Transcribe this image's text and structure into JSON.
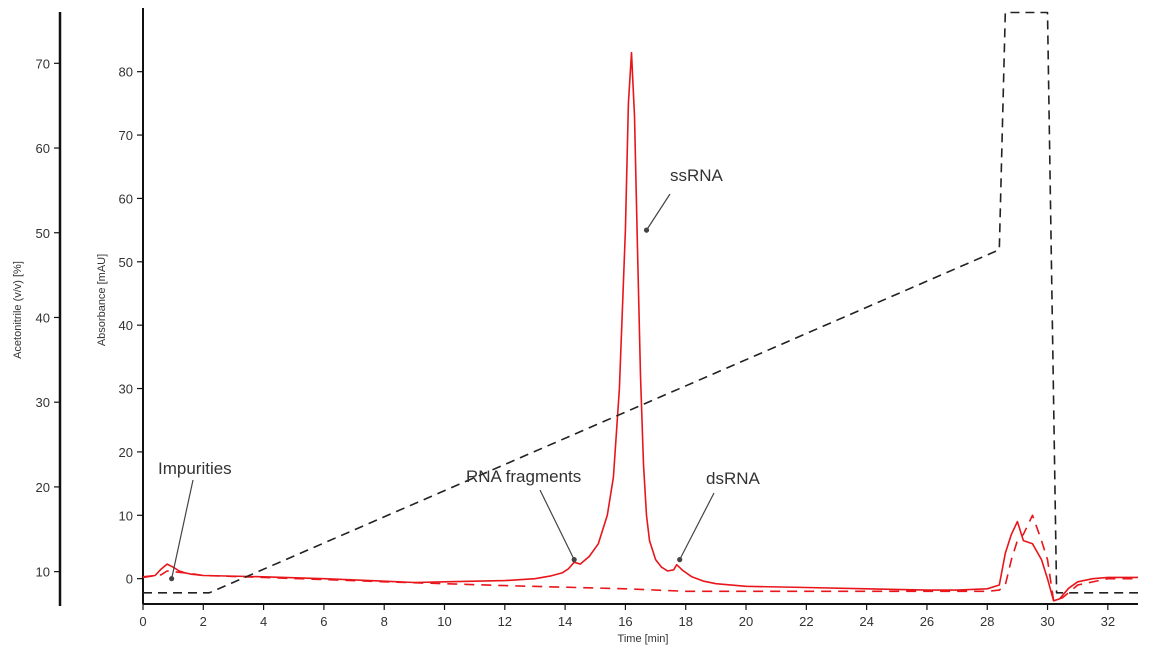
{
  "chart_data": {
    "type": "line",
    "xlabel": "Time [min]",
    "ylabel": "Absorbance [mAU]",
    "y2label": "Acetonitrile (v/v) [%]",
    "xlim": [
      0,
      33
    ],
    "ylim": [
      -4,
      85
    ],
    "y2lim": [
      5,
      77
    ],
    "x_ticks": [
      "0",
      "2",
      "4",
      "6",
      "8",
      "10",
      "12",
      "14",
      "16",
      "18",
      "20",
      "22",
      "24",
      "26",
      "28",
      "30",
      "32"
    ],
    "y_ticks": [
      "0",
      "10",
      "20",
      "30",
      "40",
      "50",
      "60",
      "70",
      "80"
    ],
    "y2_ticks": [
      "10",
      "20",
      "30",
      "40",
      "50",
      "60",
      "70"
    ],
    "grid": false,
    "colors": {
      "absorbance": "#e8161b",
      "blank": "#e8161b",
      "acetonitrile": "#222222"
    },
    "series": [
      {
        "axis": "left",
        "style": "solid",
        "x": [
          0,
          0.4,
          0.6,
          0.8,
          1.0,
          1.2,
          1.4,
          1.6,
          2,
          4,
          6,
          8,
          9,
          10,
          11,
          12,
          13,
          13.5,
          13.9,
          14.1,
          14.3,
          14.5,
          14.8,
          15.1,
          15.4,
          15.6,
          15.8,
          16.0,
          16.1,
          16.2,
          16.3,
          16.4,
          16.5,
          16.6,
          16.7,
          16.8,
          17.0,
          17.2,
          17.4,
          17.6,
          17.7,
          17.9,
          18.2,
          18.6,
          19,
          20,
          22,
          24,
          26,
          27,
          28,
          28.4,
          28.6,
          28.8,
          29.0,
          29.2,
          29.5,
          29.8,
          30.0,
          30.2,
          30.4,
          30.7,
          31,
          31.5,
          32,
          33
        ],
        "y": [
          0.3,
          0.5,
          1.5,
          2.3,
          1.8,
          1.2,
          0.9,
          0.7,
          0.5,
          0.3,
          0,
          -0.4,
          -0.6,
          -0.5,
          -0.4,
          -0.3,
          0,
          0.4,
          0.9,
          1.5,
          2.6,
          2.3,
          3.5,
          5.5,
          10,
          16,
          30,
          55,
          75,
          83,
          73,
          52,
          32,
          18,
          10,
          6,
          3,
          1.8,
          1.2,
          1.4,
          2.2,
          1.3,
          0.3,
          -0.4,
          -0.8,
          -1.2,
          -1.4,
          -1.6,
          -1.8,
          -1.8,
          -1.6,
          -1,
          4,
          7,
          9,
          6,
          5.5,
          3,
          0,
          -3.5,
          -3.2,
          -1.5,
          -0.5,
          0,
          0.2,
          0.2
        ]
      },
      {
        "axis": "left",
        "style": "dashed",
        "x": [
          0,
          0.6,
          0.8,
          1.2,
          1.6,
          2,
          4,
          8,
          12,
          16,
          18,
          20,
          24,
          28,
          28.4,
          28.6,
          28.8,
          29.0,
          29.2,
          29.5,
          29.8,
          30.0,
          30.2,
          30.5,
          31,
          32,
          33
        ],
        "y": [
          0.2,
          0.6,
          1.2,
          1.0,
          0.8,
          0.5,
          0.2,
          -0.5,
          -1.1,
          -1.6,
          -2,
          -2,
          -2,
          -2,
          -1.8,
          -1,
          3,
          6,
          7,
          10,
          6,
          3,
          -3.5,
          -3,
          -1,
          0,
          0
        ]
      },
      {
        "axis": "right",
        "style": "dashed",
        "x": [
          0,
          2.2,
          28.4,
          28.6,
          30.0,
          30.3,
          33
        ],
        "y": [
          7.5,
          7.5,
          48,
          76,
          76,
          7.5,
          7.5
        ]
      }
    ],
    "annotations": [
      {
        "text": "Impurities",
        "x": 0.95,
        "y": 0
      },
      {
        "text": "RNA fragments",
        "x": 14.3,
        "y": 3
      },
      {
        "text": "ssRNA",
        "x": 16.7,
        "y": 55
      },
      {
        "text": "dsRNA",
        "x": 17.8,
        "y": 3
      }
    ]
  }
}
